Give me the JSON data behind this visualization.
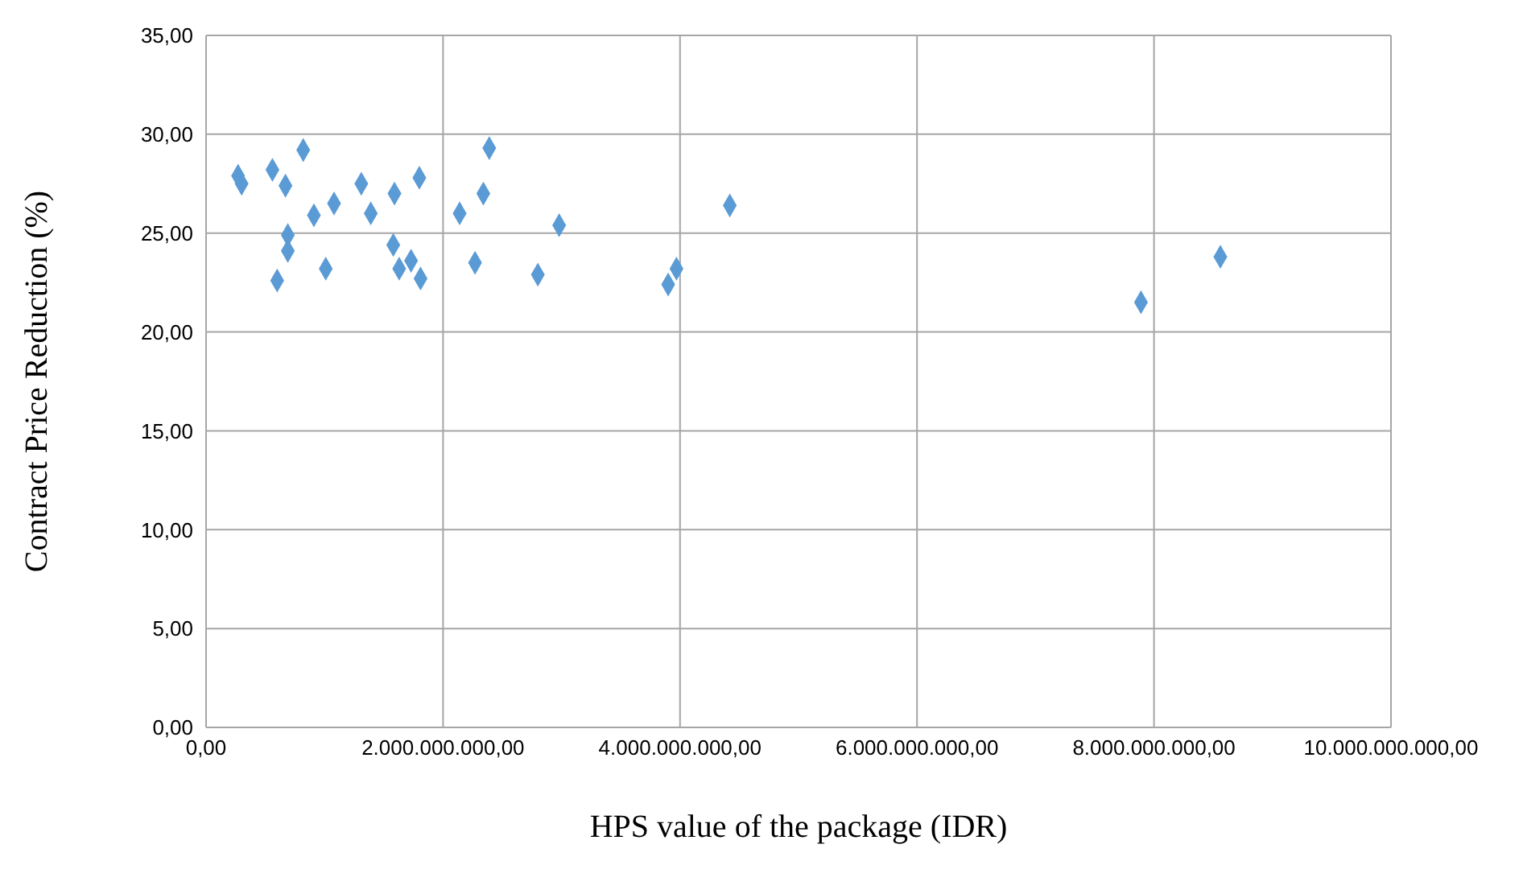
{
  "chart_data": {
    "type": "scatter",
    "xlabel": "HPS value of the package (IDR)",
    "ylabel": "Contract Price Reduction (%)",
    "x": [
      270000000,
      300000000,
      560000000,
      670000000,
      820000000,
      690000000,
      690000000,
      600000000,
      910000000,
      1080000000,
      1010000000,
      1310000000,
      1390000000,
      1580000000,
      1590000000,
      1630000000,
      1730000000,
      1810000000,
      1800000000,
      2140000000,
      2270000000,
      2340000000,
      2390000000,
      2800000000,
      2980000000,
      3900000000,
      3970000000,
      4420000000,
      7890000000,
      8560000000
    ],
    "series": [
      {
        "color": "#5b9bd5",
        "values": [
          27.9,
          27.5,
          28.2,
          27.4,
          29.2,
          24.9,
          24.1,
          22.6,
          25.9,
          26.5,
          23.2,
          27.5,
          26.0,
          24.4,
          27.0,
          23.2,
          23.6,
          22.7,
          27.8,
          26.0,
          23.5,
          27.0,
          29.3,
          22.9,
          25.4,
          22.4,
          23.2,
          26.4,
          21.5,
          23.8
        ]
      }
    ],
    "marker": "diamond",
    "grid": true,
    "xlim": [
      0,
      10000000000
    ],
    "xticks": [
      {
        "value": 0,
        "label": "0,00"
      },
      {
        "value": 2000000000,
        "label": "2.000.000.000,00"
      },
      {
        "value": 4000000000,
        "label": "4.000.000.000,00"
      },
      {
        "value": 6000000000,
        "label": "6.000.000.000,00"
      },
      {
        "value": 8000000000,
        "label": "8.000.000.000,00"
      },
      {
        "value": 10000000000,
        "label": "10.000.000.000,00"
      }
    ],
    "ylim": [
      0,
      35
    ],
    "yticks": [
      {
        "value": 0,
        "label": "0,00"
      },
      {
        "value": 5,
        "label": "5,00"
      },
      {
        "value": 10,
        "label": "10,00"
      },
      {
        "value": 15,
        "label": "15,00"
      },
      {
        "value": 20,
        "label": "20,00"
      },
      {
        "value": 25,
        "label": "25,00"
      },
      {
        "value": 30,
        "label": "30,00"
      },
      {
        "value": 35,
        "label": "35,00"
      }
    ]
  }
}
